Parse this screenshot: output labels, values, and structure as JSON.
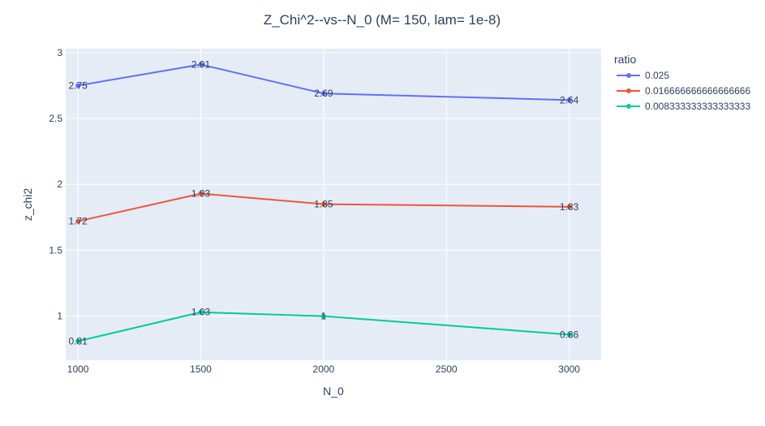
{
  "chart_data": {
    "type": "line",
    "title": "Z_Chi^2--vs--N_0  (M= 150, lam= 1e-8)",
    "xlabel": "N_0",
    "ylabel": "z_chi2",
    "x": [
      1000,
      1500,
      2000,
      3000
    ],
    "xlim": [
      950,
      3130
    ],
    "ylim": [
      0.665,
      3.03
    ],
    "xticks": [
      1000,
      1500,
      2000,
      2500,
      3000
    ],
    "xtick_labels": [
      "1000",
      "1500",
      "2000",
      "2500",
      "3000"
    ],
    "yticks": [
      1,
      1.5,
      2,
      2.5,
      3
    ],
    "ytick_labels": [
      "1",
      "1.5",
      "2",
      "2.5",
      "3"
    ],
    "grid": true,
    "legend_title": "ratio",
    "legend_position": "right",
    "series": [
      {
        "name": "0.025",
        "color": "#636efa",
        "values": [
          2.75,
          2.91,
          2.69,
          2.64
        ],
        "labels": [
          "2.75",
          "2.91",
          "2.69",
          "2.64"
        ]
      },
      {
        "name": "0.016666666666666666",
        "color": "#ef553b",
        "values": [
          1.72,
          1.93,
          1.85,
          1.83
        ],
        "labels": [
          "1.72",
          "1.93",
          "1.85",
          "1.83"
        ]
      },
      {
        "name": "0.008333333333333333",
        "color": "#00cc96",
        "values": [
          0.81,
          1.03,
          1,
          0.86
        ],
        "labels": [
          "0.81",
          "1.03",
          "1",
          "0.86"
        ]
      }
    ],
    "plot_background": "#e5ecf6"
  }
}
